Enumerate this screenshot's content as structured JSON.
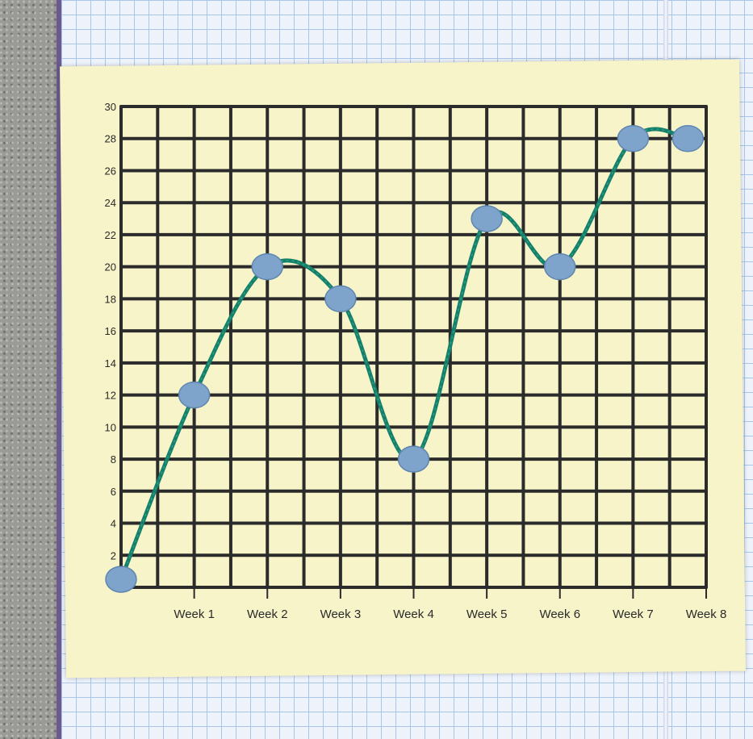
{
  "scene": {
    "description_colors": {
      "paper": "#f7f4c9",
      "grid_lines": "#2b2b2b",
      "yarn": "#15806a",
      "clay_points": "#7ea4cc",
      "notebook_grid": "#a9c6e8"
    }
  },
  "chart_data": {
    "type": "line",
    "title": "",
    "xlabel": "",
    "ylabel": "",
    "y_ticks": [
      "2",
      "4",
      "6",
      "8",
      "10",
      "12",
      "14",
      "16",
      "18",
      "20",
      "22",
      "24",
      "26",
      "28",
      "30"
    ],
    "x_tick_labels": [
      "Week 1",
      "Week 2",
      "Week 3",
      "Week 4",
      "Week 5",
      "Week 6",
      "Week 7",
      "Week 8"
    ],
    "ylim": [
      0,
      30
    ],
    "xlim": [
      0,
      8
    ],
    "grid": true,
    "series": [
      {
        "points": [
          {
            "x": 0,
            "y": 0.5
          },
          {
            "x": 1,
            "y": 12
          },
          {
            "x": 2,
            "y": 20
          },
          {
            "x": 3,
            "y": 18
          },
          {
            "x": 4,
            "y": 8
          },
          {
            "x": 5,
            "y": 23
          },
          {
            "x": 6,
            "y": 20
          },
          {
            "x": 7,
            "y": 28
          },
          {
            "x": 7.75,
            "y": 28
          }
        ]
      }
    ]
  }
}
